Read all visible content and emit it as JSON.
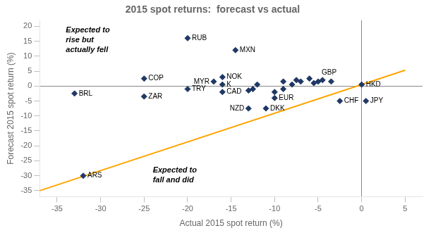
{
  "chart_data": {
    "type": "scatter",
    "title": "2015 spot returns:  forecast vs actual",
    "xlabel": "Actual 2015 spot return (%)",
    "ylabel": "Forecast 2015 spot return (%)",
    "xlim": [
      -37,
      7
    ],
    "ylim": [
      -37,
      22
    ],
    "xticks": [
      -35,
      -30,
      -25,
      -20,
      -15,
      -10,
      -5,
      0,
      5
    ],
    "yticks": [
      -35,
      -30,
      -25,
      -20,
      -15,
      -10,
      -5,
      0,
      5,
      10,
      15,
      20
    ],
    "grid": false,
    "series": [
      {
        "type": "line",
        "color": "#FFA500",
        "x": [
          -37,
          5
        ],
        "values": [
          -35,
          5.3
        ]
      },
      {
        "type": "scatter",
        "color": "#1F3864",
        "marker": "diamond",
        "x": [
          -33,
          -32,
          -25,
          -25,
          -20,
          -20,
          -17,
          -16,
          -16,
          -16,
          -14.5,
          -13,
          -11,
          -10,
          -5,
          -2.5,
          0,
          0.5,
          -13,
          -12.5,
          -12,
          -9,
          -8,
          -7.5,
          -7,
          -6,
          -5.5,
          -4.5,
          -3.5,
          -10,
          -9
        ],
        "values": [
          -2.5,
          -30,
          -3.5,
          2.5,
          -1.0,
          16.0,
          1.5,
          3.0,
          0.5,
          -2.0,
          12.0,
          -7.5,
          -7.5,
          -4.0,
          1.5,
          -5.0,
          0.5,
          -5.0,
          -1.5,
          -1.0,
          0.5,
          1.5,
          0.5,
          2.0,
          1.5,
          2.5,
          1.0,
          2.0,
          1.5,
          -2.0,
          -1.0
        ],
        "labels": [
          "BRL",
          "ARS",
          "ZAR",
          "COP",
          "TRY",
          "RUB",
          "MYR",
          "NOK",
          "K",
          "CAD",
          "MXN",
          "NZD",
          "DKK",
          "EUR",
          "GBP",
          "CHF",
          "HKD",
          "JPY",
          null,
          null,
          null,
          null,
          null,
          null,
          null,
          null,
          null,
          null,
          null,
          null,
          null
        ]
      }
    ],
    "annotations": [
      {
        "text": "Expected to\nrise but\nactually fell",
        "x": -34,
        "y": 20
      },
      {
        "text": "Expected to\nfall and did",
        "x": -24,
        "y": -27
      }
    ]
  }
}
